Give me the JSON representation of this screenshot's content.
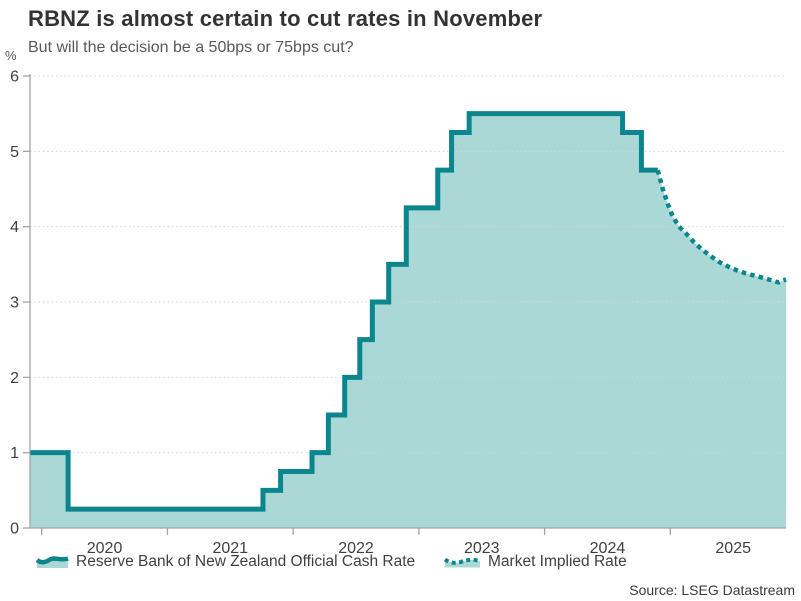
{
  "header": {
    "title": "RBNZ is almost certain to cut rates in November",
    "subtitle": "But will the decision be a 50bps or 75bps cut?"
  },
  "source": {
    "label": "Source: LSEG Datastream"
  },
  "colors": {
    "line": "#0c868e",
    "fill": "#a9d8d6",
    "axis": "#a3a3a3",
    "grid": "#d6d6d6",
    "title": "#333333",
    "subtitle": "#595959",
    "tick_label": "#404040",
    "source": "#3b3b3b"
  },
  "chart_data": {
    "type": "area",
    "title": "RBNZ is almost certain to cut rates in November",
    "subtitle": "But will the decision be a 50bps or 75bps cut?",
    "ylabel": "%",
    "xlabel": "",
    "ylim": [
      0,
      6
    ],
    "yticks": [
      0,
      1,
      2,
      3,
      4,
      5,
      6
    ],
    "xlim": [
      2019.907,
      2025.92
    ],
    "x_tick_years": [
      2020,
      2021,
      2022,
      2023,
      2024,
      2025
    ],
    "grid": "dotted-horizontal",
    "legend_position": "bottom",
    "series": [
      {
        "name": "Reserve Bank of New Zealand Official Cash Rate",
        "type": "step-area",
        "line_style": "solid",
        "points": [
          [
            2019.91,
            1.0
          ],
          [
            2020.21,
            0.25
          ],
          [
            2021.76,
            0.5
          ],
          [
            2021.9,
            0.75
          ],
          [
            2022.15,
            1.0
          ],
          [
            2022.28,
            1.5
          ],
          [
            2022.41,
            2.0
          ],
          [
            2022.53,
            2.5
          ],
          [
            2022.63,
            3.0
          ],
          [
            2022.76,
            3.5
          ],
          [
            2022.9,
            4.25
          ],
          [
            2023.15,
            4.75
          ],
          [
            2023.26,
            5.25
          ],
          [
            2023.4,
            5.5
          ],
          [
            2024.62,
            5.25
          ],
          [
            2024.77,
            4.75
          ],
          [
            2024.9,
            4.75
          ]
        ]
      },
      {
        "name": "Market Implied Rate",
        "type": "line-area",
        "line_style": "dotted",
        "points": [
          [
            2024.9,
            4.75
          ],
          [
            2024.94,
            4.5
          ],
          [
            2024.98,
            4.3
          ],
          [
            2025.02,
            4.13
          ],
          [
            2025.07,
            4.0
          ],
          [
            2025.13,
            3.9
          ],
          [
            2025.19,
            3.79
          ],
          [
            2025.25,
            3.7
          ],
          [
            2025.32,
            3.61
          ],
          [
            2025.39,
            3.53
          ],
          [
            2025.46,
            3.47
          ],
          [
            2025.53,
            3.42
          ],
          [
            2025.6,
            3.38
          ],
          [
            2025.67,
            3.35
          ],
          [
            2025.74,
            3.32
          ],
          [
            2025.8,
            3.29
          ],
          [
            2025.86,
            3.26
          ],
          [
            2025.92,
            3.3
          ]
        ]
      }
    ]
  }
}
